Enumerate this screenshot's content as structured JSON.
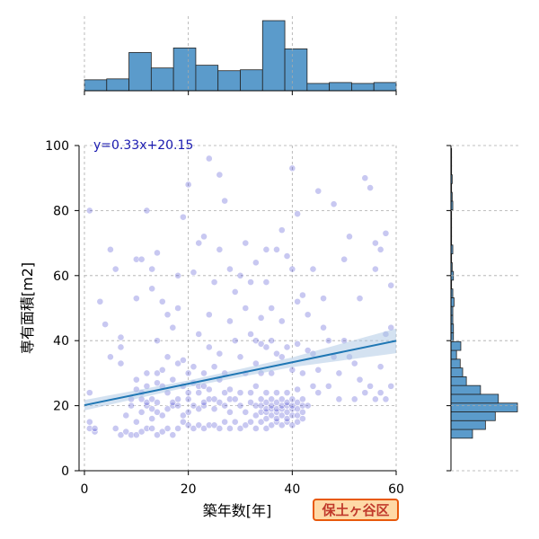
{
  "chart_data": {
    "type": "scatter",
    "xlabel": "築年数[年]",
    "ylabel": "専有面積[m2]",
    "xlim": [
      0,
      60
    ],
    "ylim": [
      0,
      100
    ],
    "x_ticks": [
      0,
      20,
      40,
      60
    ],
    "y_ticks": [
      0,
      20,
      40,
      60,
      80,
      100
    ],
    "grid": true,
    "regression": {
      "label": "y=0.33x+20.15",
      "slope": 0.33,
      "intercept": 20.15,
      "x_range": [
        0,
        60
      ],
      "ci_halfwidth_at_x": [
        [
          0,
          1.6
        ],
        [
          20,
          1.0
        ],
        [
          40,
          1.5
        ],
        [
          60,
          3.8
        ]
      ]
    },
    "scatter_color": "#3a3acc",
    "line_color": "#1f77b4",
    "band_color": "#a9c6e4",
    "hist_color": "#5b9bcb",
    "marginal_x": {
      "bin_edges": [
        0,
        4.2857,
        8.5714,
        12.857,
        17.143,
        21.429,
        25.714,
        30,
        34.286,
        38.571,
        42.857,
        47.143,
        51.429,
        55.714,
        60
      ],
      "counts": [
        12,
        13,
        42,
        25,
        47,
        28,
        22,
        23,
        77,
        46,
        8,
        9,
        8,
        9
      ]
    },
    "marginal_y": {
      "bin_edges": [
        10,
        12.7,
        15.4,
        18.1,
        20.8,
        23.5,
        26.2,
        28.9,
        31.6,
        34.3,
        37,
        39.7,
        42.4,
        45.1,
        47.8,
        50.5,
        53.2,
        55.9,
        58.6,
        61.3,
        64,
        66.7,
        69.4,
        72.1,
        74.8,
        77.5,
        80.2,
        82.9,
        85.6,
        88.3,
        91,
        93.7,
        96.4,
        99.1
      ],
      "counts": [
        35,
        56,
        72,
        108,
        77,
        48,
        25,
        19,
        15,
        9,
        16,
        4,
        4,
        3,
        3,
        5,
        3,
        1,
        4,
        2,
        1,
        3,
        1,
        1,
        1,
        1,
        3,
        2,
        1,
        2,
        1,
        1,
        1
      ]
    },
    "points": [
      [
        1,
        24
      ],
      [
        1,
        15
      ],
      [
        1,
        13
      ],
      [
        2,
        12
      ],
      [
        2,
        13
      ],
      [
        1,
        80
      ],
      [
        3,
        52
      ],
      [
        4,
        45
      ],
      [
        5,
        35
      ],
      [
        5,
        68
      ],
      [
        6,
        62
      ],
      [
        6,
        13
      ],
      [
        7,
        11
      ],
      [
        7,
        38
      ],
      [
        7,
        41
      ],
      [
        7,
        33
      ],
      [
        8,
        12
      ],
      [
        8,
        17
      ],
      [
        9,
        20
      ],
      [
        9,
        22
      ],
      [
        9,
        11
      ],
      [
        10,
        11
      ],
      [
        10,
        15
      ],
      [
        10,
        25
      ],
      [
        10,
        28
      ],
      [
        10,
        53
      ],
      [
        10,
        65
      ],
      [
        11,
        12
      ],
      [
        11,
        18
      ],
      [
        11,
        22
      ],
      [
        11,
        24
      ],
      [
        11,
        65
      ],
      [
        12,
        13
      ],
      [
        12,
        20
      ],
      [
        12,
        21
      ],
      [
        12,
        26
      ],
      [
        12,
        30
      ],
      [
        12,
        80
      ],
      [
        13,
        13
      ],
      [
        13,
        16
      ],
      [
        13,
        19
      ],
      [
        13,
        22
      ],
      [
        13,
        56
      ],
      [
        13,
        62
      ],
      [
        14,
        11
      ],
      [
        14,
        18
      ],
      [
        14,
        21
      ],
      [
        14,
        27
      ],
      [
        14,
        30
      ],
      [
        14,
        40
      ],
      [
        14,
        67
      ],
      [
        15,
        12
      ],
      [
        15,
        17
      ],
      [
        15,
        26
      ],
      [
        15,
        31
      ],
      [
        15,
        52
      ],
      [
        16,
        13
      ],
      [
        16,
        19
      ],
      [
        16,
        24
      ],
      [
        16,
        35
      ],
      [
        16,
        48
      ],
      [
        17,
        11
      ],
      [
        17,
        20
      ],
      [
        17,
        21
      ],
      [
        17,
        28
      ],
      [
        17,
        44
      ],
      [
        18,
        13
      ],
      [
        18,
        20
      ],
      [
        18,
        22
      ],
      [
        18,
        33
      ],
      [
        18,
        50
      ],
      [
        18,
        60
      ],
      [
        19,
        15
      ],
      [
        19,
        17
      ],
      [
        19,
        26
      ],
      [
        19,
        34
      ],
      [
        19,
        78
      ],
      [
        20,
        14
      ],
      [
        20,
        18
      ],
      [
        20,
        22
      ],
      [
        20,
        24
      ],
      [
        20,
        30
      ],
      [
        20,
        88
      ],
      [
        21,
        13
      ],
      [
        21,
        20
      ],
      [
        21,
        27
      ],
      [
        21,
        32
      ],
      [
        21,
        61
      ],
      [
        22,
        14
      ],
      [
        22,
        19
      ],
      [
        22,
        24
      ],
      [
        22,
        26
      ],
      [
        22,
        42
      ],
      [
        22,
        70
      ],
      [
        23,
        13
      ],
      [
        23,
        20
      ],
      [
        23,
        21
      ],
      [
        23,
        26
      ],
      [
        23,
        30
      ],
      [
        23,
        72
      ],
      [
        24,
        14
      ],
      [
        24,
        22
      ],
      [
        24,
        25
      ],
      [
        24,
        38
      ],
      [
        24,
        48
      ],
      [
        24,
        96
      ],
      [
        25,
        14
      ],
      [
        25,
        19
      ],
      [
        25,
        22
      ],
      [
        25,
        32
      ],
      [
        25,
        58
      ],
      [
        26,
        13
      ],
      [
        26,
        21
      ],
      [
        26,
        28
      ],
      [
        26,
        36
      ],
      [
        26,
        68
      ],
      [
        26,
        91
      ],
      [
        27,
        15
      ],
      [
        27,
        20
      ],
      [
        27,
        24
      ],
      [
        27,
        30
      ],
      [
        27,
        83
      ],
      [
        28,
        13
      ],
      [
        28,
        18
      ],
      [
        28,
        22
      ],
      [
        28,
        25
      ],
      [
        28,
        46
      ],
      [
        28,
        62
      ],
      [
        29,
        15
      ],
      [
        29,
        22
      ],
      [
        29,
        40
      ],
      [
        29,
        55
      ],
      [
        30,
        13
      ],
      [
        30,
        20
      ],
      [
        30,
        24
      ],
      [
        30,
        35
      ],
      [
        30,
        60
      ],
      [
        31,
        14
      ],
      [
        31,
        18
      ],
      [
        31,
        30
      ],
      [
        31,
        50
      ],
      [
        31,
        70
      ],
      [
        32,
        15
      ],
      [
        32,
        21
      ],
      [
        32,
        24
      ],
      [
        32,
        42
      ],
      [
        32,
        58
      ],
      [
        33,
        13
      ],
      [
        33,
        17
      ],
      [
        33,
        20
      ],
      [
        33,
        26
      ],
      [
        33,
        33
      ],
      [
        33,
        40
      ],
      [
        33,
        64
      ],
      [
        34,
        15
      ],
      [
        34,
        18
      ],
      [
        34,
        20
      ],
      [
        34,
        22
      ],
      [
        34,
        30
      ],
      [
        34,
        39
      ],
      [
        34,
        47
      ],
      [
        35,
        13
      ],
      [
        35,
        16
      ],
      [
        35,
        18
      ],
      [
        35,
        19
      ],
      [
        35,
        21
      ],
      [
        35,
        24
      ],
      [
        35,
        38
      ],
      [
        35,
        58
      ],
      [
        35,
        68
      ],
      [
        36,
        14
      ],
      [
        36,
        17
      ],
      [
        36,
        19
      ],
      [
        36,
        20
      ],
      [
        36,
        22
      ],
      [
        36,
        30
      ],
      [
        36,
        40
      ],
      [
        36,
        50
      ],
      [
        37,
        15
      ],
      [
        37,
        16
      ],
      [
        37,
        18
      ],
      [
        37,
        19
      ],
      [
        37,
        21
      ],
      [
        37,
        24
      ],
      [
        37,
        36
      ],
      [
        37,
        68
      ],
      [
        38,
        14
      ],
      [
        38,
        17
      ],
      [
        38,
        19
      ],
      [
        38,
        20
      ],
      [
        38,
        22
      ],
      [
        38,
        35
      ],
      [
        38,
        46
      ],
      [
        38,
        74
      ],
      [
        39,
        15
      ],
      [
        39,
        16
      ],
      [
        39,
        18
      ],
      [
        39,
        20
      ],
      [
        39,
        21
      ],
      [
        39,
        24
      ],
      [
        39,
        38
      ],
      [
        39,
        66
      ],
      [
        40,
        14
      ],
      [
        40,
        17
      ],
      [
        40,
        19
      ],
      [
        40,
        20
      ],
      [
        40,
        22
      ],
      [
        40,
        31
      ],
      [
        40,
        62
      ],
      [
        40,
        93
      ],
      [
        41,
        15
      ],
      [
        41,
        17
      ],
      [
        41,
        19
      ],
      [
        41,
        21
      ],
      [
        41,
        25
      ],
      [
        41,
        39
      ],
      [
        41,
        52
      ],
      [
        41,
        79
      ],
      [
        42,
        16
      ],
      [
        42,
        18
      ],
      [
        42,
        20
      ],
      [
        42,
        22
      ],
      [
        42,
        30
      ],
      [
        42,
        54
      ],
      [
        43,
        20
      ],
      [
        43,
        37
      ],
      [
        43,
        48
      ],
      [
        44,
        26
      ],
      [
        44,
        36
      ],
      [
        44,
        62
      ],
      [
        45,
        24
      ],
      [
        45,
        31
      ],
      [
        45,
        86
      ],
      [
        46,
        44
      ],
      [
        46,
        53
      ],
      [
        47,
        26
      ],
      [
        47,
        40
      ],
      [
        48,
        35
      ],
      [
        48,
        82
      ],
      [
        49,
        22
      ],
      [
        49,
        30
      ],
      [
        50,
        40
      ],
      [
        50,
        65
      ],
      [
        51,
        35
      ],
      [
        51,
        72
      ],
      [
        52,
        22
      ],
      [
        52,
        33
      ],
      [
        53,
        28
      ],
      [
        53,
        53
      ],
      [
        54,
        24
      ],
      [
        54,
        90
      ],
      [
        55,
        26
      ],
      [
        55,
        87
      ],
      [
        56,
        22
      ],
      [
        56,
        62
      ],
      [
        56,
        70
      ],
      [
        57,
        24
      ],
      [
        57,
        32
      ],
      [
        57,
        68
      ],
      [
        58,
        22
      ],
      [
        58,
        42
      ],
      [
        58,
        73
      ],
      [
        59,
        26
      ],
      [
        59,
        57
      ],
      [
        59,
        44
      ]
    ]
  },
  "badge": {
    "text": "保土ヶ谷区",
    "text_color": "#c0392b",
    "bg_color": "#fed9a6",
    "border_color": "#e8590c"
  }
}
